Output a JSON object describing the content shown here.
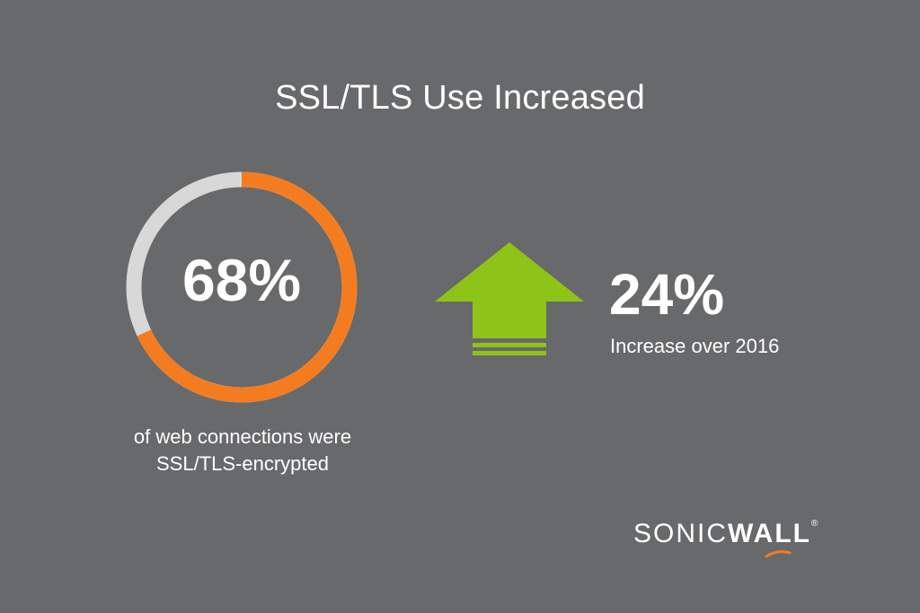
{
  "title": "SSL/TLS Use Increased",
  "colors": {
    "background": "#68696b",
    "ring_track": "#d8d8d8",
    "ring_fill": "#f47c20",
    "arrow": "#8ec318",
    "text": "#ffffff"
  },
  "donut": {
    "percent": 68,
    "label": "68%",
    "caption_line1": "of web connections were",
    "caption_line2": "SSL/TLS-encrypted"
  },
  "increase": {
    "value": "24%",
    "caption": "Increase over 2016",
    "icon": "up-arrow-icon"
  },
  "logo": {
    "text_thin": "SONIC",
    "text_bold": "WALL",
    "registered": "®"
  }
}
